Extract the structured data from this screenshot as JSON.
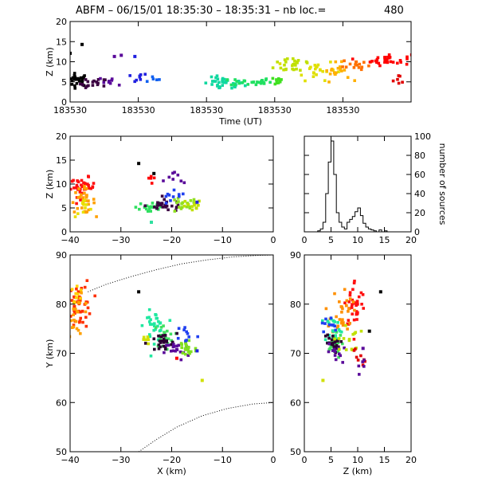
{
  "figure": {
    "title_left": "ABFM – 06/15/01 18:35:30 – 18:35:31 – nb loc.=",
    "title_count": "480"
  },
  "chart_data": [
    {
      "id": "time-height",
      "type": "scatter",
      "xlabel": "Time (UT)",
      "ylabel": "Z (km)",
      "xlim": [
        0,
        1
      ],
      "ylim": [
        0,
        20
      ],
      "xticks": [
        0,
        0.2,
        0.4,
        0.6,
        0.8
      ],
      "xtick_labels": [
        "183530",
        "183530",
        "183530",
        "183530",
        "183530"
      ],
      "yticks": [
        0,
        5,
        10,
        15,
        20
      ],
      "clusters": [
        {
          "x": 0.02,
          "y": 5.5,
          "sx": 0.018,
          "sy": 0.8,
          "n": 28,
          "color": "#000000"
        },
        {
          "x": 0.07,
          "y": 4.5,
          "sx": 0.02,
          "sy": 0.7,
          "n": 18,
          "color": "#3a0040"
        },
        {
          "x": 0.13,
          "y": 5.2,
          "sx": 0.02,
          "sy": 0.5,
          "n": 8,
          "color": "#5a0a9a"
        },
        {
          "x": 0.19,
          "y": 6.0,
          "sx": 0.02,
          "sy": 0.6,
          "n": 8,
          "color": "#2020e0"
        },
        {
          "x": 0.24,
          "y": 5.6,
          "sx": 0.015,
          "sy": 0.4,
          "n": 5,
          "color": "#1060f0"
        },
        {
          "x": 0.45,
          "y": 4.5,
          "sx": 0.03,
          "sy": 0.8,
          "n": 35,
          "color": "#10d8a0"
        },
        {
          "x": 0.53,
          "y": 5.0,
          "sx": 0.03,
          "sy": 0.5,
          "n": 25,
          "color": "#20e060"
        },
        {
          "x": 0.6,
          "y": 5.3,
          "sx": 0.015,
          "sy": 0.5,
          "n": 12,
          "color": "#40e020"
        },
        {
          "x": 0.66,
          "y": 9.5,
          "sx": 0.03,
          "sy": 1.2,
          "n": 25,
          "color": "#c0e000"
        },
        {
          "x": 0.72,
          "y": 8.0,
          "sx": 0.03,
          "sy": 1.3,
          "n": 22,
          "color": "#e0e000"
        },
        {
          "x": 0.78,
          "y": 7.5,
          "sx": 0.02,
          "sy": 1.1,
          "n": 18,
          "color": "#ffb000"
        },
        {
          "x": 0.84,
          "y": 9.3,
          "sx": 0.02,
          "sy": 0.8,
          "n": 16,
          "color": "#ff7000"
        },
        {
          "x": 0.93,
          "y": 10.5,
          "sx": 0.035,
          "sy": 0.7,
          "n": 30,
          "color": "#ff0000"
        },
        {
          "x": 0.97,
          "y": 5.5,
          "sx": 0.015,
          "sy": 0.6,
          "n": 6,
          "color": "#e00000"
        }
      ],
      "points": [
        {
          "x": 0.035,
          "y": 14.3,
          "color": "#000000"
        },
        {
          "x": 0.0,
          "y": 12.1,
          "color": "#000000"
        },
        {
          "x": 0.13,
          "y": 11.3,
          "color": "#5a0a9a"
        },
        {
          "x": 0.15,
          "y": 11.6,
          "color": "#5a0a9a"
        },
        {
          "x": 0.19,
          "y": 11.3,
          "color": "#2020e0"
        }
      ]
    },
    {
      "id": "x-height",
      "type": "scatter",
      "xlabel": "",
      "ylabel": "Z (km)",
      "xlim": [
        -40,
        0
      ],
      "ylim": [
        0,
        20
      ],
      "xticks": [
        -40,
        -30,
        -20,
        -10,
        0
      ],
      "xtick_labels": [
        "−40",
        "−30",
        "−20",
        "−10",
        "0"
      ],
      "yticks": [
        0,
        5,
        10,
        15,
        20
      ],
      "clusters": [
        {
          "x": -37.5,
          "y": 9.3,
          "sx": 1.2,
          "sy": 1.0,
          "n": 38,
          "color": "#ff1010"
        },
        {
          "x": -37.5,
          "y": 6.5,
          "sx": 1.2,
          "sy": 1.3,
          "n": 30,
          "color": "#ffa000"
        },
        {
          "x": -37,
          "y": 5.0,
          "sx": 1.0,
          "sy": 1.0,
          "n": 10,
          "color": "#e8e000"
        },
        {
          "x": -24,
          "y": 5.2,
          "sx": 1.5,
          "sy": 0.8,
          "n": 25,
          "color": "#30e060"
        },
        {
          "x": -21,
          "y": 5.5,
          "sx": 2.0,
          "sy": 0.6,
          "n": 25,
          "color": "#3a0040"
        },
        {
          "x": -18,
          "y": 5.5,
          "sx": 1.5,
          "sy": 0.8,
          "n": 18,
          "color": "#90e020"
        },
        {
          "x": -16,
          "y": 5.2,
          "sx": 1.0,
          "sy": 0.8,
          "n": 12,
          "color": "#c0e000"
        },
        {
          "x": -19,
          "y": 11.2,
          "sx": 1.0,
          "sy": 0.6,
          "n": 8,
          "color": "#5a0a9a"
        },
        {
          "x": -24,
          "y": 11.5,
          "sx": 0.5,
          "sy": 0.8,
          "n": 5,
          "color": "#ff0000"
        },
        {
          "x": -20,
          "y": 6.8,
          "sx": 1.5,
          "sy": 0.8,
          "n": 10,
          "color": "#2040f0"
        }
      ],
      "points": [
        {
          "x": -26.5,
          "y": 14.3,
          "color": "#000000"
        },
        {
          "x": -23.5,
          "y": 12.2,
          "color": "#000000"
        },
        {
          "x": -15,
          "y": 6.2,
          "color": "#2020e0"
        },
        {
          "x": -24,
          "y": 2.0,
          "color": "#30e0a0"
        }
      ]
    },
    {
      "id": "height-histogram",
      "type": "line",
      "xlabel": "",
      "ylabel": "number of sources",
      "xlim": [
        0,
        20
      ],
      "ylim": [
        0,
        100
      ],
      "xticks": [
        0,
        5,
        10,
        15,
        20
      ],
      "xtick_labels": [
        "0",
        "5",
        "10",
        "15",
        "20"
      ],
      "yticks": [
        0,
        20,
        40,
        60,
        80,
        100
      ],
      "x": [
        0,
        0.5,
        1,
        1.5,
        2,
        2.5,
        3,
        3.5,
        4,
        4.5,
        5,
        5.5,
        6,
        6.5,
        7,
        7.5,
        8,
        8.5,
        9,
        9.5,
        10,
        10.5,
        11,
        11.5,
        12,
        12.5,
        13,
        13.5,
        14,
        14.5,
        15,
        15.5,
        16,
        16.5,
        17,
        17.5,
        18,
        18.5,
        19,
        19.5
      ],
      "values": [
        0,
        0,
        0,
        0,
        0,
        1,
        3,
        10,
        40,
        73,
        95,
        60,
        20,
        10,
        5,
        3,
        10,
        13,
        16,
        21,
        25,
        17,
        9,
        5,
        3,
        2,
        1,
        0,
        2,
        0,
        1,
        0,
        0,
        0,
        0,
        0,
        0,
        0,
        0,
        0
      ]
    },
    {
      "id": "plan-view",
      "type": "scatter",
      "xlabel": "X (km)",
      "ylabel": "Y (km)",
      "xlim": [
        -40,
        0
      ],
      "ylim": [
        50,
        90
      ],
      "xticks": [
        -40,
        -30,
        -20,
        -10,
        0
      ],
      "xtick_labels": [
        "−40",
        "−30",
        "−20",
        "−10",
        "0"
      ],
      "yticks": [
        50,
        60,
        70,
        80,
        90
      ],
      "clusters": [
        {
          "x": -38,
          "y": 80,
          "sx": 1.2,
          "sy": 2.5,
          "n": 45,
          "color": "#ff3000"
        },
        {
          "x": -38.5,
          "y": 77.5,
          "sx": 1.2,
          "sy": 2.0,
          "n": 25,
          "color": "#ffa000"
        },
        {
          "x": -39,
          "y": 82,
          "sx": 0.8,
          "sy": 1.5,
          "n": 10,
          "color": "#ffd000"
        },
        {
          "x": -23.5,
          "y": 75.5,
          "sx": 1.0,
          "sy": 1.5,
          "n": 30,
          "color": "#20e8a0"
        },
        {
          "x": -21.5,
          "y": 73.5,
          "sx": 1.0,
          "sy": 1.2,
          "n": 20,
          "color": "#40e060"
        },
        {
          "x": -22,
          "y": 72.0,
          "sx": 1.5,
          "sy": 1.0,
          "n": 25,
          "color": "#2a0030"
        },
        {
          "x": -19,
          "y": 70.5,
          "sx": 1.2,
          "sy": 1.0,
          "n": 18,
          "color": "#5a0a9a"
        },
        {
          "x": -17,
          "y": 71.0,
          "sx": 1.0,
          "sy": 1.2,
          "n": 22,
          "color": "#80e020"
        },
        {
          "x": -17,
          "y": 74.0,
          "sx": 1.0,
          "sy": 1.0,
          "n": 10,
          "color": "#2040f0"
        },
        {
          "x": -25,
          "y": 72.5,
          "sx": 0.8,
          "sy": 1.0,
          "n": 6,
          "color": "#d0e000"
        }
      ],
      "points": [
        {
          "x": -26.5,
          "y": 82.5,
          "color": "#000000"
        },
        {
          "x": -19,
          "y": 69.0,
          "color": "#ff0000"
        },
        {
          "x": -14,
          "y": 64.5,
          "color": "#d0e000"
        },
        {
          "x": -15,
          "y": 70.5,
          "color": "#2020e0"
        }
      ],
      "curves": [
        {
          "style": "dotted",
          "x": [
            -36.5,
            -33,
            -28,
            -23,
            -18,
            -13,
            -8,
            -3,
            0
          ],
          "y": [
            82.5,
            84.0,
            85.6,
            87.0,
            88.2,
            89.0,
            89.6,
            89.9,
            90.0
          ]
        },
        {
          "style": "dotted",
          "x": [
            -26.5,
            -23,
            -19,
            -14,
            -9,
            -4,
            0
          ],
          "y": [
            50.0,
            52.5,
            55.0,
            57.3,
            58.8,
            59.7,
            60.0
          ]
        }
      ]
    },
    {
      "id": "height-y",
      "type": "scatter",
      "xlabel": "Z (km)",
      "ylabel": "",
      "xlim": [
        0,
        20
      ],
      "ylim": [
        50,
        90
      ],
      "xticks": [
        0,
        5,
        10,
        15,
        20
      ],
      "xtick_labels": [
        "0",
        "5",
        "10",
        "15",
        "20"
      ],
      "yticks": [
        50,
        60,
        70,
        80,
        90
      ],
      "clusters": [
        {
          "x": 9.5,
          "y": 80,
          "sx": 1.0,
          "sy": 2.5,
          "n": 35,
          "color": "#ff1010"
        },
        {
          "x": 7.0,
          "y": 78.5,
          "sx": 1.0,
          "sy": 2.5,
          "n": 30,
          "color": "#ff9000"
        },
        {
          "x": 5.5,
          "y": 75.0,
          "sx": 0.8,
          "sy": 1.5,
          "n": 25,
          "color": "#20e8a0"
        },
        {
          "x": 5.5,
          "y": 71.5,
          "sx": 0.8,
          "sy": 1.2,
          "n": 25,
          "color": "#40e060"
        },
        {
          "x": 5.0,
          "y": 72.0,
          "sx": 0.8,
          "sy": 1.0,
          "n": 20,
          "color": "#2a0030"
        },
        {
          "x": 6.0,
          "y": 70.0,
          "sx": 0.8,
          "sy": 1.0,
          "n": 12,
          "color": "#5a0a9a"
        },
        {
          "x": 8.0,
          "y": 73.0,
          "sx": 1.2,
          "sy": 1.5,
          "n": 15,
          "color": "#c0e000"
        },
        {
          "x": 4.5,
          "y": 75.5,
          "sx": 0.7,
          "sy": 1.2,
          "n": 10,
          "color": "#2040f0"
        },
        {
          "x": 10.5,
          "y": 70.0,
          "sx": 0.6,
          "sy": 1.5,
          "n": 8,
          "color": "#e00000"
        },
        {
          "x": 10.5,
          "y": 67.5,
          "sx": 0.5,
          "sy": 0.8,
          "n": 5,
          "color": "#5a0a9a"
        }
      ],
      "points": [
        {
          "x": 14.3,
          "y": 82.5,
          "color": "#000000"
        },
        {
          "x": 12.2,
          "y": 74.5,
          "color": "#000000"
        },
        {
          "x": 3.5,
          "y": 64.5,
          "color": "#d0e000"
        },
        {
          "x": 11.0,
          "y": 71.0,
          "color": "#5a0a9a"
        }
      ]
    }
  ]
}
